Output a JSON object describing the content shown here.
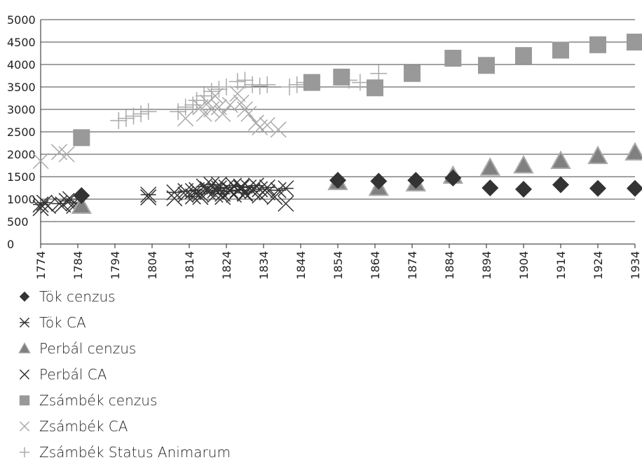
{
  "chart_data": {
    "type": "scatter",
    "title": "",
    "xlabel": "",
    "ylabel": "",
    "xlim": [
      1774,
      1934
    ],
    "ylim": [
      0,
      5000
    ],
    "x_ticks": [
      "1774",
      "1784",
      "1794",
      "1804",
      "1814",
      "1824",
      "1834",
      "1844",
      "1854",
      "1864",
      "1874",
      "1884",
      "1894",
      "1904",
      "1914",
      "1924",
      "1934"
    ],
    "y_ticks": [
      "0",
      "500",
      "1000",
      "1500",
      "2000",
      "2500",
      "3000",
      "3500",
      "4000",
      "4500",
      "5000"
    ],
    "grid": "horizontal",
    "legend_position": "bottom",
    "series": [
      {
        "name": "Tök cenzus",
        "marker": "diamond",
        "color": "#333333",
        "points": [
          [
            1785,
            1080
          ],
          [
            1854,
            1420
          ],
          [
            1865,
            1400
          ],
          [
            1875,
            1420
          ],
          [
            1885,
            1470
          ],
          [
            1895,
            1250
          ],
          [
            1904,
            1220
          ],
          [
            1914,
            1320
          ],
          [
            1924,
            1240
          ],
          [
            1934,
            1240
          ]
        ]
      },
      {
        "name": "Tök CA",
        "marker": "star",
        "color": "#333333",
        "points": [
          [
            1774,
            880
          ],
          [
            1775,
            920
          ],
          [
            1779,
            900
          ],
          [
            1781,
            960
          ],
          [
            1782,
            1000
          ],
          [
            1783,
            920
          ],
          [
            1803,
            1100
          ],
          [
            1810,
            1150
          ],
          [
            1813,
            1180
          ],
          [
            1815,
            1060
          ],
          [
            1816,
            1200
          ],
          [
            1817,
            1120
          ],
          [
            1818,
            1280
          ],
          [
            1819,
            1160
          ],
          [
            1820,
            1320
          ],
          [
            1821,
            1200
          ],
          [
            1822,
            1240
          ],
          [
            1823,
            1120
          ],
          [
            1824,
            1260
          ],
          [
            1825,
            1180
          ],
          [
            1826,
            1300
          ],
          [
            1827,
            1200
          ],
          [
            1828,
            1280
          ],
          [
            1829,
            1140
          ],
          [
            1830,
            1260
          ],
          [
            1831,
            1180
          ],
          [
            1832,
            1300
          ],
          [
            1833,
            1220
          ],
          [
            1835,
            1260
          ],
          [
            1838,
            1200
          ],
          [
            1840,
            1240
          ]
        ]
      },
      {
        "name": "Perbál cenzus",
        "marker": "triangle",
        "color": "#808080",
        "points": [
          [
            1785,
            850
          ],
          [
            1854,
            1380
          ],
          [
            1865,
            1250
          ],
          [
            1875,
            1350
          ],
          [
            1885,
            1520
          ],
          [
            1895,
            1700
          ],
          [
            1904,
            1750
          ],
          [
            1914,
            1850
          ],
          [
            1924,
            1960
          ],
          [
            1934,
            2040
          ]
        ]
      },
      {
        "name": "Perbál CA",
        "marker": "x",
        "color": "#333333",
        "points": [
          [
            1774,
            800
          ],
          [
            1776,
            850
          ],
          [
            1780,
            880
          ],
          [
            1783,
            850
          ],
          [
            1803,
            1040
          ],
          [
            1810,
            1020
          ],
          [
            1813,
            1100
          ],
          [
            1815,
            1180
          ],
          [
            1817,
            1050
          ],
          [
            1819,
            1220
          ],
          [
            1821,
            1100
          ],
          [
            1822,
            1320
          ],
          [
            1823,
            1050
          ],
          [
            1825,
            1200
          ],
          [
            1826,
            1100
          ],
          [
            1828,
            1250
          ],
          [
            1829,
            1120
          ],
          [
            1831,
            1180
          ],
          [
            1833,
            1080
          ],
          [
            1835,
            1150
          ],
          [
            1837,
            1050
          ],
          [
            1840,
            900
          ]
        ]
      },
      {
        "name": "Zsámbék cenzus",
        "marker": "square",
        "color": "#999999",
        "points": [
          [
            1785,
            2370
          ],
          [
            1847,
            3600
          ],
          [
            1855,
            3720
          ],
          [
            1864,
            3480
          ],
          [
            1874,
            3800
          ],
          [
            1885,
            4140
          ],
          [
            1894,
            3980
          ],
          [
            1904,
            4200
          ],
          [
            1914,
            4320
          ],
          [
            1924,
            4440
          ],
          [
            1934,
            4500
          ]
        ]
      },
      {
        "name": "Zsámbék CA",
        "marker": "x",
        "color": "#aaaaaa",
        "points": [
          [
            1774,
            1850
          ],
          [
            1779,
            2050
          ],
          [
            1781,
            2000
          ],
          [
            1813,
            2800
          ],
          [
            1817,
            3050
          ],
          [
            1818,
            2900
          ],
          [
            1819,
            3150
          ],
          [
            1820,
            3000
          ],
          [
            1821,
            3300
          ],
          [
            1822,
            3050
          ],
          [
            1823,
            2900
          ],
          [
            1825,
            3100
          ],
          [
            1827,
            3350
          ],
          [
            1828,
            3150
          ],
          [
            1829,
            3000
          ],
          [
            1830,
            2900
          ],
          [
            1832,
            2700
          ],
          [
            1833,
            2600
          ],
          [
            1835,
            2650
          ],
          [
            1838,
            2550
          ]
        ]
      },
      {
        "name": "Zsámbék Status Animarum",
        "marker": "plus",
        "color": "#aaaaaa",
        "points": [
          [
            1795,
            2750
          ],
          [
            1797,
            2800
          ],
          [
            1799,
            2850
          ],
          [
            1801,
            2900
          ],
          [
            1803,
            2950
          ],
          [
            1811,
            2950
          ],
          [
            1813,
            3050
          ],
          [
            1815,
            3100
          ],
          [
            1816,
            3200
          ],
          [
            1818,
            3300
          ],
          [
            1820,
            3400
          ],
          [
            1822,
            3450
          ],
          [
            1824,
            3500
          ],
          [
            1827,
            3620
          ],
          [
            1829,
            3650
          ],
          [
            1831,
            3550
          ],
          [
            1833,
            3520
          ],
          [
            1835,
            3550
          ],
          [
            1841,
            3500
          ],
          [
            1843,
            3550
          ],
          [
            1845,
            3600
          ],
          [
            1857,
            3650
          ],
          [
            1860,
            3600
          ],
          [
            1865,
            3800
          ]
        ]
      }
    ]
  }
}
